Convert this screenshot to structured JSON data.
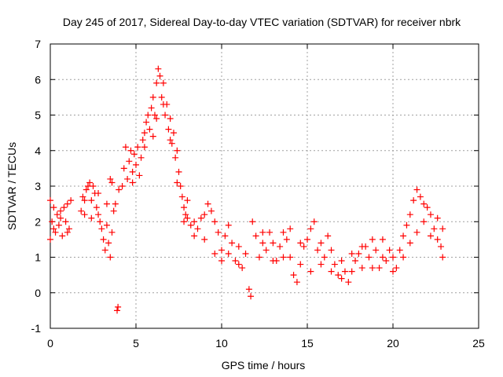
{
  "chart_data": {
    "type": "scatter",
    "title": "Day 245 of 2017, Sidereal Day-to-day VTEC variation (SDTVAR) for receiver nbrk",
    "xlabel": "GPS time / hours",
    "ylabel": "SDTVAR / TECUs",
    "xlim": [
      0,
      25
    ],
    "ylim": [
      -1,
      7
    ],
    "xticks": [
      "0",
      "5",
      "10",
      "15",
      "20",
      "25"
    ],
    "yticks": [
      "-1",
      "0",
      "1",
      "2",
      "3",
      "4",
      "5",
      "6",
      "7"
    ],
    "grid": true,
    "marker": "+",
    "series": [
      {
        "name": "SDTVAR",
        "color": "#ff0000",
        "points": [
          [
            0.0,
            2.6
          ],
          [
            0.0,
            1.5
          ],
          [
            0.1,
            2.0
          ],
          [
            0.2,
            2.4
          ],
          [
            0.3,
            1.7
          ],
          [
            0.4,
            2.2
          ],
          [
            0.5,
            1.9
          ],
          [
            0.6,
            2.1
          ],
          [
            0.7,
            1.6
          ],
          [
            0.8,
            2.4
          ],
          [
            0.9,
            2.0
          ],
          [
            1.0,
            2.5
          ],
          [
            1.1,
            1.8
          ],
          [
            1.2,
            2.6
          ],
          [
            1.8,
            2.3
          ],
          [
            1.9,
            2.7
          ],
          [
            2.0,
            2.2
          ],
          [
            2.1,
            2.9
          ],
          [
            2.2,
            3.0
          ],
          [
            2.3,
            3.1
          ],
          [
            2.4,
            2.6
          ],
          [
            2.5,
            3.0
          ],
          [
            2.6,
            2.8
          ],
          [
            2.7,
            2.4
          ],
          [
            2.8,
            2.2
          ],
          [
            2.9,
            2.0
          ],
          [
            3.0,
            1.8
          ],
          [
            3.1,
            1.5
          ],
          [
            3.2,
            1.2
          ],
          [
            3.3,
            1.9
          ],
          [
            3.4,
            1.4
          ],
          [
            3.5,
            1.0
          ],
          [
            3.6,
            1.7
          ],
          [
            3.7,
            2.3
          ],
          [
            3.8,
            2.5
          ],
          [
            3.5,
            3.2
          ],
          [
            3.6,
            3.1
          ],
          [
            3.9,
            -0.5
          ],
          [
            3.95,
            -0.4
          ],
          [
            4.0,
            2.9
          ],
          [
            4.2,
            3.0
          ],
          [
            4.3,
            3.5
          ],
          [
            4.4,
            4.1
          ],
          [
            4.5,
            3.2
          ],
          [
            4.6,
            3.7
          ],
          [
            4.7,
            4.0
          ],
          [
            4.8,
            3.4
          ],
          [
            4.9,
            3.9
          ],
          [
            5.0,
            3.6
          ],
          [
            5.1,
            4.1
          ],
          [
            5.2,
            3.3
          ],
          [
            5.3,
            3.8
          ],
          [
            5.4,
            4.3
          ],
          [
            5.5,
            4.5
          ],
          [
            5.6,
            4.8
          ],
          [
            5.7,
            5.0
          ],
          [
            5.8,
            4.6
          ],
          [
            5.9,
            5.2
          ],
          [
            6.0,
            5.5
          ],
          [
            6.1,
            5.0
          ],
          [
            6.2,
            5.9
          ],
          [
            6.3,
            6.3
          ],
          [
            6.4,
            6.1
          ],
          [
            6.5,
            5.5
          ],
          [
            6.6,
            5.9
          ],
          [
            6.7,
            5.0
          ],
          [
            6.8,
            5.3
          ],
          [
            6.9,
            4.6
          ],
          [
            7.0,
            4.9
          ],
          [
            7.1,
            4.2
          ],
          [
            7.2,
            4.5
          ],
          [
            7.3,
            3.8
          ],
          [
            7.4,
            4.0
          ],
          [
            7.5,
            3.4
          ],
          [
            7.6,
            3.0
          ],
          [
            7.7,
            2.7
          ],
          [
            7.8,
            2.4
          ],
          [
            7.9,
            2.2
          ],
          [
            8.0,
            2.1
          ],
          [
            8.2,
            1.9
          ],
          [
            8.4,
            2.0
          ],
          [
            8.6,
            1.8
          ],
          [
            8.8,
            2.1
          ],
          [
            9.0,
            2.2
          ],
          [
            9.2,
            2.5
          ],
          [
            9.4,
            2.3
          ],
          [
            9.6,
            2.0
          ],
          [
            9.8,
            1.7
          ],
          [
            10.0,
            1.2
          ],
          [
            10.2,
            1.6
          ],
          [
            10.4,
            1.9
          ],
          [
            10.6,
            1.4
          ],
          [
            10.8,
            0.9
          ],
          [
            11.0,
            1.3
          ],
          [
            11.2,
            0.7
          ],
          [
            11.4,
            1.1
          ],
          [
            11.6,
            0.1
          ],
          [
            11.7,
            -0.1
          ],
          [
            11.8,
            2.0
          ],
          [
            12.0,
            1.6
          ],
          [
            12.2,
            1.0
          ],
          [
            12.4,
            1.4
          ],
          [
            12.6,
            1.2
          ],
          [
            12.8,
            1.7
          ],
          [
            13.0,
            1.4
          ],
          [
            13.2,
            0.9
          ],
          [
            13.4,
            1.3
          ],
          [
            13.6,
            1.7
          ],
          [
            13.8,
            1.5
          ],
          [
            14.0,
            1.0
          ],
          [
            14.2,
            0.5
          ],
          [
            14.4,
            0.3
          ],
          [
            14.6,
            0.8
          ],
          [
            14.8,
            1.3
          ],
          [
            15.0,
            1.5
          ],
          [
            15.2,
            1.8
          ],
          [
            15.4,
            2.0
          ],
          [
            15.6,
            1.2
          ],
          [
            15.8,
            0.8
          ],
          [
            16.0,
            1.0
          ],
          [
            16.2,
            1.6
          ],
          [
            16.4,
            1.2
          ],
          [
            16.6,
            0.8
          ],
          [
            16.8,
            0.5
          ],
          [
            17.0,
            0.9
          ],
          [
            17.2,
            0.6
          ],
          [
            17.4,
            0.3
          ],
          [
            17.6,
            0.6
          ],
          [
            17.8,
            0.9
          ],
          [
            18.0,
            1.1
          ],
          [
            18.2,
            0.7
          ],
          [
            18.4,
            1.3
          ],
          [
            18.6,
            1.0
          ],
          [
            18.8,
            1.5
          ],
          [
            19.0,
            1.2
          ],
          [
            19.2,
            0.7
          ],
          [
            19.4,
            1.0
          ],
          [
            19.6,
            0.9
          ],
          [
            19.8,
            1.2
          ],
          [
            20.0,
            1.0
          ],
          [
            20.2,
            0.7
          ],
          [
            20.4,
            1.2
          ],
          [
            20.6,
            1.6
          ],
          [
            20.8,
            1.9
          ],
          [
            21.0,
            2.2
          ],
          [
            21.2,
            2.6
          ],
          [
            21.4,
            2.9
          ],
          [
            21.6,
            2.7
          ],
          [
            21.8,
            2.5
          ],
          [
            22.0,
            2.4
          ],
          [
            22.2,
            2.2
          ],
          [
            22.4,
            1.8
          ],
          [
            22.6,
            1.5
          ],
          [
            22.8,
            1.3
          ],
          [
            22.9,
            1.0
          ],
          [
            0.2,
            1.8
          ],
          [
            0.6,
            2.3
          ],
          [
            1.0,
            1.7
          ],
          [
            2.0,
            2.6
          ],
          [
            2.4,
            2.1
          ],
          [
            4.8,
            3.1
          ],
          [
            5.5,
            4.1
          ],
          [
            6.0,
            4.4
          ],
          [
            6.2,
            4.9
          ],
          [
            6.6,
            5.3
          ],
          [
            7.0,
            4.3
          ],
          [
            7.4,
            3.1
          ],
          [
            8.4,
            1.6
          ],
          [
            9.0,
            1.5
          ],
          [
            9.6,
            1.1
          ],
          [
            10.0,
            0.9
          ],
          [
            10.4,
            1.1
          ],
          [
            11.0,
            0.8
          ],
          [
            12.4,
            1.7
          ],
          [
            13.0,
            0.9
          ],
          [
            13.6,
            1.0
          ],
          [
            14.0,
            1.8
          ],
          [
            14.6,
            1.4
          ],
          [
            15.2,
            0.6
          ],
          [
            15.8,
            1.4
          ],
          [
            16.4,
            0.6
          ],
          [
            17.0,
            0.4
          ],
          [
            17.6,
            1.1
          ],
          [
            18.2,
            1.3
          ],
          [
            18.8,
            0.7
          ],
          [
            19.4,
            1.5
          ],
          [
            20.0,
            0.6
          ],
          [
            20.6,
            1.0
          ],
          [
            21.0,
            1.4
          ],
          [
            21.4,
            1.7
          ],
          [
            21.8,
            2.0
          ],
          [
            22.2,
            1.6
          ],
          [
            22.6,
            2.1
          ],
          [
            22.9,
            1.8
          ],
          [
            2.8,
            2.8
          ],
          [
            3.3,
            2.5
          ],
          [
            7.8,
            2.0
          ],
          [
            8.0,
            2.6
          ]
        ]
      }
    ]
  }
}
